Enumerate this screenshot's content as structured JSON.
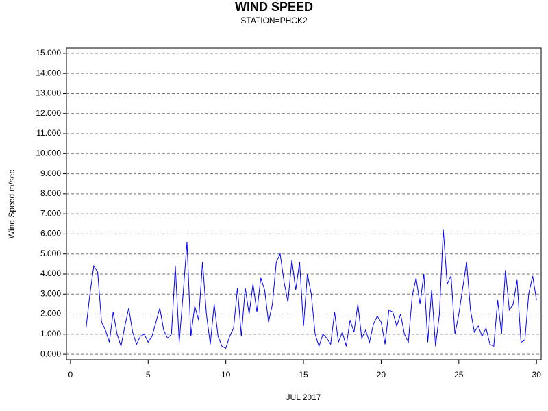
{
  "chart_data": {
    "type": "line",
    "title": "WIND SPEED",
    "subtitle": "STATION=PHCK2",
    "x_label": "JUL 2017",
    "y_label": "Wind Speed m/sec",
    "xlim": [
      -0.26,
      30.3
    ],
    "ylim": [
      -0.27,
      15.27
    ],
    "xticks": [
      0,
      5,
      10,
      15,
      20,
      25,
      30
    ],
    "yticks": [
      {
        "value": 0,
        "label": "0.000"
      },
      {
        "value": 1,
        "label": "1.000"
      },
      {
        "value": 2,
        "label": "2.000"
      },
      {
        "value": 3,
        "label": "3.000"
      },
      {
        "value": 4,
        "label": "4.000"
      },
      {
        "value": 5,
        "label": "5.000"
      },
      {
        "value": 6,
        "label": "6.000"
      },
      {
        "value": 7,
        "label": "7.000"
      },
      {
        "value": 8,
        "label": "8.000"
      },
      {
        "value": 9,
        "label": "9.000"
      },
      {
        "value": 10,
        "label": "10.000"
      },
      {
        "value": 11,
        "label": "11.000"
      },
      {
        "value": 12,
        "label": "12.000"
      },
      {
        "value": 13,
        "label": "13.000"
      },
      {
        "value": 14,
        "label": "14.000"
      },
      {
        "value": 15,
        "label": "15.000"
      }
    ],
    "grid": true,
    "color": "#0000ff",
    "x": [
      1,
      1.25,
      1.5,
      1.75,
      2,
      2.25,
      2.5,
      2.75,
      3,
      3.25,
      3.5,
      3.75,
      4,
      4.25,
      4.5,
      4.75,
      5,
      5.25,
      5.5,
      5.75,
      6,
      6.25,
      6.5,
      6.75,
      7,
      7.25,
      7.5,
      7.75,
      8,
      8.25,
      8.5,
      8.75,
      9,
      9.25,
      9.5,
      9.75,
      10,
      10.25,
      10.5,
      10.75,
      11,
      11.25,
      11.5,
      11.75,
      12,
      12.25,
      12.5,
      12.75,
      13,
      13.25,
      13.5,
      13.75,
      14,
      14.25,
      14.5,
      14.75,
      15,
      15.25,
      15.5,
      15.75,
      16,
      16.25,
      16.5,
      16.75,
      17,
      17.25,
      17.5,
      17.75,
      18,
      18.25,
      18.5,
      18.75,
      19,
      19.25,
      19.5,
      19.75,
      20,
      20.25,
      20.5,
      20.75,
      21,
      21.25,
      21.5,
      21.75,
      22,
      22.25,
      22.5,
      22.75,
      23,
      23.25,
      23.5,
      23.75,
      24,
      24.25,
      24.5,
      24.75,
      25,
      25.25,
      25.5,
      25.75,
      26,
      26.25,
      26.5,
      26.75,
      27,
      27.25,
      27.5,
      27.75,
      28,
      28.25,
      28.5,
      28.75,
      29,
      29.25,
      29.5,
      29.75,
      30
    ],
    "values": [
      1.3,
      3.0,
      4.4,
      4.1,
      1.6,
      1.2,
      0.6,
      2.1,
      1.0,
      0.4,
      1.4,
      2.3,
      1.1,
      0.5,
      0.9,
      1.0,
      0.6,
      0.9,
      1.6,
      2.3,
      1.2,
      0.8,
      1.0,
      4.4,
      0.6,
      3.0,
      5.6,
      0.9,
      2.4,
      1.7,
      4.6,
      2.0,
      0.5,
      2.5,
      0.9,
      0.4,
      0.3,
      0.9,
      1.3,
      3.3,
      0.9,
      3.3,
      2.0,
      3.5,
      2.1,
      3.8,
      3.2,
      1.6,
      2.5,
      4.6,
      5.0,
      3.6,
      2.6,
      4.7,
      3.2,
      4.6,
      1.4,
      4.0,
      3.0,
      1.0,
      0.4,
      1.0,
      0.8,
      0.5,
      2.1,
      0.6,
      1.1,
      0.4,
      1.7,
      1.1,
      2.5,
      0.8,
      1.2,
      0.6,
      1.5,
      1.9,
      1.6,
      0.5,
      2.2,
      2.1,
      1.4,
      2.0,
      1.0,
      0.6,
      2.9,
      3.8,
      2.5,
      4.0,
      0.6,
      3.2,
      0.4,
      2.0,
      6.2,
      3.5,
      3.9,
      1.0,
      2.0,
      3.3,
      4.6,
      2.2,
      1.1,
      1.4,
      0.9,
      1.3,
      0.5,
      0.4,
      2.7,
      1.0,
      4.2,
      2.2,
      2.5,
      3.7,
      0.6,
      0.7,
      3.0,
      3.9,
      2.7
    ]
  }
}
